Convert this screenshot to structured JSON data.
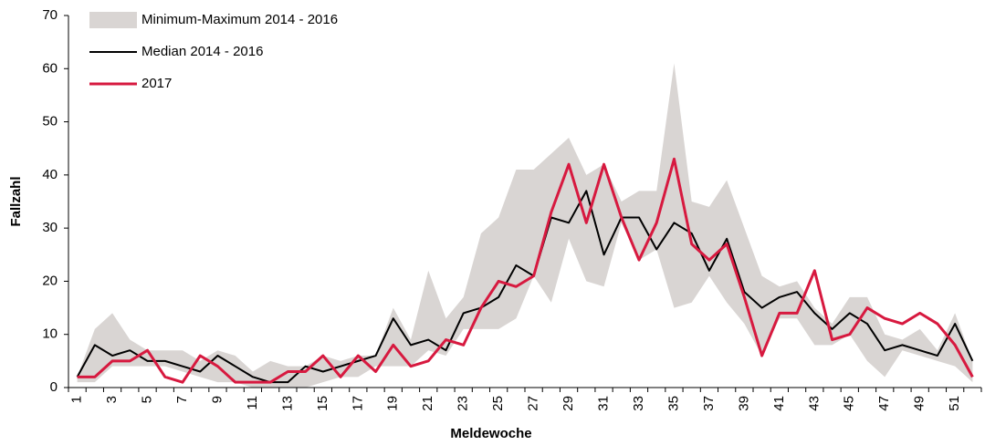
{
  "chart_data": {
    "type": "line",
    "xlabel": "Meldewoche",
    "ylabel": "Fallzahl",
    "categories": [
      "1",
      null,
      "3",
      null,
      "5",
      null,
      "7",
      null,
      "9",
      null,
      "11",
      null,
      "13",
      null,
      "15",
      null,
      "17",
      null,
      "19",
      null,
      "21",
      null,
      "23",
      null,
      "25",
      null,
      "27",
      null,
      "29",
      null,
      "31",
      null,
      "33",
      null,
      "35",
      null,
      "37",
      null,
      "39",
      null,
      "41",
      null,
      "43",
      null,
      "45",
      null,
      "47",
      null,
      "49",
      null,
      "51",
      null
    ],
    "ylim": [
      0,
      70
    ],
    "yticks": [
      0,
      10,
      20,
      30,
      40,
      50,
      60,
      70
    ],
    "legend": "top-left",
    "band": {
      "name": "Minimum-Maximum 2014 - 2016",
      "color": "#d9d5d3",
      "low": [
        1,
        1,
        4,
        4,
        4,
        4,
        3,
        2,
        1,
        1,
        0,
        0,
        0,
        0,
        1,
        2,
        2,
        4,
        4,
        4,
        7,
        6,
        11,
        11,
        11,
        13,
        21,
        16,
        28,
        20,
        19,
        31,
        24,
        26,
        15,
        16,
        21,
        16,
        12,
        6,
        13,
        13,
        8,
        8,
        10,
        5,
        2,
        7,
        6,
        5,
        4,
        1
      ],
      "high": [
        2,
        11,
        14,
        9,
        7,
        7,
        7,
        5,
        7,
        6,
        3,
        5,
        4,
        4,
        6,
        5,
        6,
        6,
        15,
        9,
        22,
        13,
        17,
        29,
        32,
        41,
        41,
        44,
        47,
        40,
        42,
        35,
        37,
        37,
        61,
        35,
        34,
        39,
        30,
        21,
        19,
        20,
        15,
        12,
        17,
        17,
        10,
        9,
        11,
        7,
        14,
        5
      ]
    },
    "series": [
      {
        "name": "Median 2014 - 2016",
        "color": "#000000",
        "width": 2,
        "values": [
          2,
          8,
          6,
          7,
          5,
          5,
          4,
          3,
          6,
          4,
          2,
          1,
          1,
          4,
          3,
          4,
          5,
          6,
          13,
          8,
          9,
          7,
          14,
          15,
          17,
          23,
          21,
          32,
          31,
          37,
          25,
          32,
          32,
          26,
          31,
          29,
          22,
          28,
          18,
          15,
          17,
          18,
          14,
          11,
          14,
          12,
          7,
          8,
          7,
          6,
          12,
          5
        ]
      },
      {
        "name": "2017",
        "color": "#d7193f",
        "width": 3,
        "values": [
          2,
          2,
          5,
          5,
          7,
          2,
          1,
          6,
          4,
          1,
          1,
          1,
          3,
          3,
          6,
          2,
          6,
          3,
          8,
          4,
          5,
          9,
          8,
          15,
          20,
          19,
          21,
          33,
          42,
          31,
          42,
          32,
          24,
          31,
          43,
          27,
          24,
          27,
          17,
          6,
          14,
          14,
          22,
          9,
          10,
          15,
          13,
          12,
          14,
          12,
          8,
          2
        ]
      }
    ]
  }
}
